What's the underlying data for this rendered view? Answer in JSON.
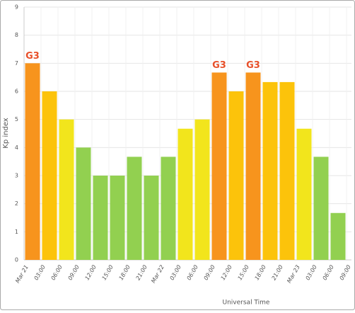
{
  "chart_data": {
    "type": "bar",
    "y_label": "Kp index",
    "x_label": "Universal Time",
    "categories": [
      "Mar 21",
      "03:00",
      "06:00",
      "09:00",
      "12:00",
      "15:00",
      "18:00",
      "21:00",
      "Mar 22",
      "03:00",
      "06:00",
      "09:00",
      "12:00",
      "15:00",
      "18:00",
      "21:00",
      "Mar 23",
      "03:00",
      "06:00",
      "09:00"
    ],
    "values": [
      7,
      6,
      5,
      4,
      3,
      3,
      3.67,
      3,
      3.67,
      4.67,
      5,
      6.67,
      6,
      6.67,
      6.33,
      6.33,
      4.67,
      3.67,
      1.67,
      null
    ],
    "colors": [
      "#f7941d",
      "#fcc30b",
      "#f2e51c",
      "#92d050",
      "#92d050",
      "#92d050",
      "#92d050",
      "#92d050",
      "#92d050",
      "#f2e51c",
      "#f2e51c",
      "#f7941d",
      "#fcc30b",
      "#f7941d",
      "#fcc30b",
      "#fcc30b",
      "#f2e51c",
      "#92d050",
      "#92d050",
      null
    ],
    "annotations": [
      {
        "index": 0,
        "text": "G3"
      },
      {
        "index": 11,
        "text": "G3"
      },
      {
        "index": 13,
        "text": "G3"
      }
    ],
    "annotation_color": "#e8502a",
    "ylim": [
      0,
      9
    ],
    "yticks": [
      0,
      1,
      2,
      3,
      4,
      5,
      6,
      7,
      8,
      9
    ],
    "grid": true
  }
}
